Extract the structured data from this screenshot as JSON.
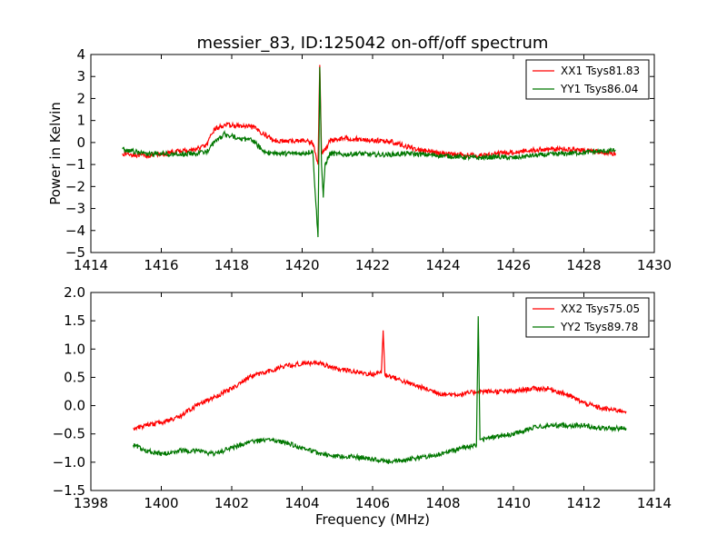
{
  "chart_data": [
    {
      "type": "line",
      "title": "messier_83, ID:125042 on-off/off spectrum",
      "xlabel": "",
      "ylabel": "Power in Kelvin",
      "xlim": [
        1414,
        1430
      ],
      "ylim": [
        -5,
        4
      ],
      "xticks": [
        "1414",
        "1416",
        "1418",
        "1420",
        "1422",
        "1424",
        "1426",
        "1428",
        "1430"
      ],
      "yticks": [
        "−5",
        "−4",
        "−3",
        "−2",
        "−1",
        "0",
        "1",
        "2",
        "3",
        "4"
      ],
      "grid": false,
      "legend_position": "top-right",
      "series": [
        {
          "name": "XX1 Tsys81.83",
          "color": "#ff0000",
          "x": [
            1414.9,
            1415.5,
            1416.0,
            1416.5,
            1417.0,
            1417.3,
            1417.5,
            1417.8,
            1418.2,
            1418.6,
            1418.9,
            1419.2,
            1419.6,
            1420.0,
            1420.3,
            1420.45,
            1420.5,
            1420.55,
            1420.65,
            1420.8,
            1421.2,
            1421.6,
            1422.0,
            1422.5,
            1423.0,
            1423.5,
            1424.0,
            1424.5,
            1425.0,
            1425.5,
            1426.0,
            1426.5,
            1427.0,
            1427.5,
            1428.0,
            1428.5,
            1428.9
          ],
          "y": [
            -0.5,
            -0.6,
            -0.55,
            -0.4,
            -0.3,
            -0.1,
            0.6,
            0.8,
            0.75,
            0.7,
            0.4,
            0.1,
            0.05,
            0.1,
            0.0,
            -1.0,
            3.5,
            -0.5,
            -0.3,
            0.1,
            0.2,
            0.15,
            0.1,
            0.05,
            -0.2,
            -0.4,
            -0.5,
            -0.55,
            -0.6,
            -0.5,
            -0.45,
            -0.35,
            -0.3,
            -0.3,
            -0.35,
            -0.45,
            -0.5
          ]
        },
        {
          "name": "YY1 Tsys86.04",
          "color": "#007700",
          "x": [
            1414.9,
            1415.5,
            1416.0,
            1416.5,
            1417.0,
            1417.3,
            1417.5,
            1417.8,
            1418.2,
            1418.6,
            1418.9,
            1419.2,
            1419.6,
            1420.0,
            1420.3,
            1420.45,
            1420.5,
            1420.55,
            1420.6,
            1420.65,
            1420.8,
            1421.2,
            1421.6,
            1422.0,
            1422.5,
            1423.0,
            1423.5,
            1424.0,
            1424.5,
            1425.0,
            1425.5,
            1426.0,
            1426.5,
            1427.0,
            1427.5,
            1428.0,
            1428.5,
            1428.9
          ],
          "y": [
            -0.3,
            -0.5,
            -0.5,
            -0.55,
            -0.5,
            -0.4,
            0.0,
            0.4,
            0.2,
            0.1,
            -0.4,
            -0.5,
            -0.5,
            -0.5,
            -0.4,
            -4.3,
            3.4,
            -1.0,
            -2.5,
            -1.0,
            -0.5,
            -0.55,
            -0.5,
            -0.55,
            -0.55,
            -0.5,
            -0.55,
            -0.6,
            -0.65,
            -0.7,
            -0.65,
            -0.7,
            -0.6,
            -0.55,
            -0.5,
            -0.45,
            -0.4,
            -0.35
          ]
        }
      ]
    },
    {
      "type": "line",
      "title": "",
      "xlabel": "Frequency (MHz)",
      "ylabel": "",
      "xlim": [
        1398,
        1414
      ],
      "ylim": [
        -1.5,
        2.0
      ],
      "xticks": [
        "1398",
        "1400",
        "1402",
        "1404",
        "1406",
        "1408",
        "1410",
        "1412",
        "1414"
      ],
      "yticks": [
        "−1.5",
        "−1.0",
        "−0.5",
        "0.0",
        "0.5",
        "1.0",
        "1.5",
        "2.0"
      ],
      "grid": false,
      "legend_position": "top-right",
      "series": [
        {
          "name": "XX2 Tsys75.05",
          "color": "#ff0000",
          "x": [
            1399.2,
            1399.6,
            1400.0,
            1400.5,
            1401.0,
            1401.5,
            1402.0,
            1402.5,
            1403.0,
            1403.5,
            1404.0,
            1404.5,
            1405.0,
            1405.5,
            1406.0,
            1406.25,
            1406.3,
            1406.35,
            1406.6,
            1407.0,
            1407.5,
            1408.0,
            1408.5,
            1409.0,
            1409.5,
            1410.0,
            1410.5,
            1411.0,
            1411.5,
            1412.0,
            1412.5,
            1413.2
          ],
          "y": [
            -0.4,
            -0.35,
            -0.3,
            -0.2,
            0.0,
            0.15,
            0.3,
            0.5,
            0.6,
            0.7,
            0.75,
            0.75,
            0.65,
            0.6,
            0.55,
            0.6,
            1.33,
            0.55,
            0.5,
            0.4,
            0.3,
            0.2,
            0.2,
            0.25,
            0.25,
            0.25,
            0.3,
            0.3,
            0.2,
            0.05,
            -0.05,
            -0.1
          ]
        },
        {
          "name": "YY2 Tsys89.78",
          "color": "#007700",
          "x": [
            1399.2,
            1399.6,
            1400.0,
            1400.5,
            1401.0,
            1401.5,
            1402.0,
            1402.5,
            1403.0,
            1403.5,
            1404.0,
            1404.5,
            1405.0,
            1405.5,
            1406.0,
            1406.5,
            1407.0,
            1407.5,
            1408.0,
            1408.5,
            1408.95,
            1409.0,
            1409.05,
            1409.5,
            1410.0,
            1410.5,
            1411.0,
            1411.5,
            1412.0,
            1412.5,
            1413.2
          ],
          "y": [
            -0.7,
            -0.8,
            -0.85,
            -0.8,
            -0.8,
            -0.85,
            -0.75,
            -0.65,
            -0.6,
            -0.65,
            -0.75,
            -0.85,
            -0.9,
            -0.9,
            -0.95,
            -1.0,
            -0.95,
            -0.9,
            -0.85,
            -0.75,
            -0.7,
            1.58,
            -0.6,
            -0.55,
            -0.5,
            -0.4,
            -0.35,
            -0.35,
            -0.35,
            -0.4,
            -0.4
          ]
        }
      ]
    }
  ]
}
